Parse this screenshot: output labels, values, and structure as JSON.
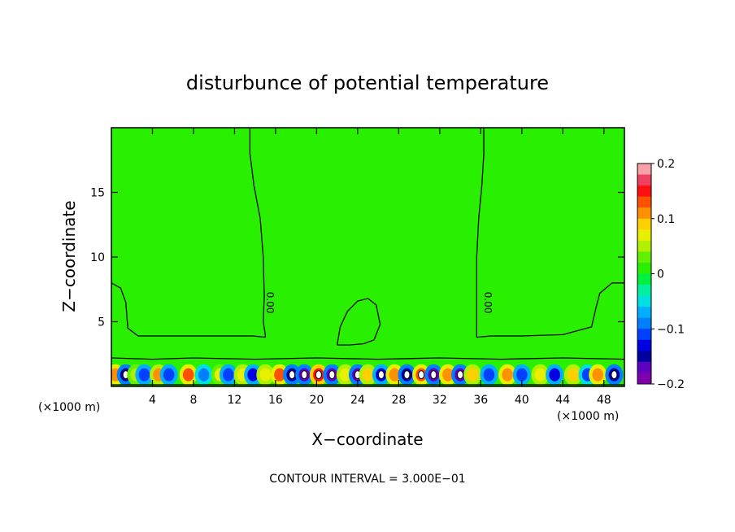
{
  "chart_data": {
    "type": "heatmap",
    "title": "disturbunce of potential temperature",
    "xlabel": "X−coordinate",
    "ylabel": "Z−coordinate",
    "x_unit_left": "(×1000 m)",
    "x_unit_right": "(×1000 m)",
    "footer": "CONTOUR INTERVAL = 3.000E−01",
    "contour_label": "0.00",
    "xlim": [
      0,
      50
    ],
    "ylim": [
      0,
      20
    ],
    "x_ticks": [
      4,
      8,
      12,
      16,
      20,
      24,
      28,
      32,
      36,
      40,
      44,
      48
    ],
    "y_ticks": [
      5,
      10,
      15
    ],
    "colorbar": {
      "range": [
        -0.2,
        0.2
      ],
      "ticks": [
        0.2,
        0.1,
        0,
        -0.1,
        -0.2
      ],
      "tick_labels": [
        "0.2",
        "0.1",
        "0",
        "−0.1",
        "−0.2"
      ],
      "colors": [
        "#f7a0a8",
        "#f04060",
        "#ff1010",
        "#ff5000",
        "#ff9000",
        "#ffd000",
        "#e8f000",
        "#b0f000",
        "#60f000",
        "#28f000",
        "#00f040",
        "#00f0a0",
        "#00e0e0",
        "#00b0ff",
        "#0080ff",
        "#0040ff",
        "#0000e0",
        "#0000a0",
        "#6000c0",
        "#8000b0"
      ]
    },
    "background_value": 0.0,
    "cells": [
      {
        "x": 0.4,
        "value": 0.15
      },
      {
        "x": 1.4,
        "value": -0.18
      },
      {
        "x": 2.4,
        "value": 0.06
      },
      {
        "x": 3.2,
        "value": -0.15
      },
      {
        "x": 4.6,
        "value": 0.13
      },
      {
        "x": 5.6,
        "value": -0.14
      },
      {
        "x": 7.5,
        "value": 0.16
      },
      {
        "x": 9.0,
        "value": -0.12
      },
      {
        "x": 10.6,
        "value": 0.08
      },
      {
        "x": 11.4,
        "value": -0.15
      },
      {
        "x": 12.8,
        "value": 0.1
      },
      {
        "x": 13.8,
        "value": -0.16
      },
      {
        "x": 15.0,
        "value": 0.1
      },
      {
        "x": 16.4,
        "value": 0.16
      },
      {
        "x": 17.6,
        "value": -0.18
      },
      {
        "x": 18.8,
        "value": -0.2
      },
      {
        "x": 20.2,
        "value": 0.18
      },
      {
        "x": 21.5,
        "value": -0.2
      },
      {
        "x": 22.8,
        "value": 0.09
      },
      {
        "x": 24.0,
        "value": -0.2
      },
      {
        "x": 25.0,
        "value": 0.12
      },
      {
        "x": 26.3,
        "value": -0.17
      },
      {
        "x": 27.6,
        "value": 0.14
      },
      {
        "x": 28.8,
        "value": -0.19
      },
      {
        "x": 30.2,
        "value": 0.17
      },
      {
        "x": 31.4,
        "value": -0.2
      },
      {
        "x": 32.8,
        "value": 0.15
      },
      {
        "x": 34.0,
        "value": -0.2
      },
      {
        "x": 35.2,
        "value": 0.12
      },
      {
        "x": 36.8,
        "value": -0.14
      },
      {
        "x": 38.6,
        "value": 0.14
      },
      {
        "x": 40.0,
        "value": -0.15
      },
      {
        "x": 41.8,
        "value": 0.1
      },
      {
        "x": 43.2,
        "value": -0.16
      },
      {
        "x": 45.0,
        "value": 0.12
      },
      {
        "x": 46.4,
        "value": -0.13
      },
      {
        "x": 47.4,
        "value": 0.14
      },
      {
        "x": 49.0,
        "value": -0.18
      }
    ],
    "contours": [
      {
        "x": [
          13.5,
          13.5,
          13.9,
          14.5,
          14.8,
          14.9,
          14.8,
          15.0,
          15.0
        ],
        "y": [
          20,
          18,
          15.5,
          13,
          10,
          7,
          5,
          4,
          3.8
        ]
      },
      {
        "x": [
          36.3,
          36.3,
          36.1,
          35.8,
          35.6,
          35.6,
          35.6,
          35.6
        ],
        "y": [
          20,
          18,
          15.5,
          13,
          10,
          7,
          5,
          3.8
        ]
      },
      {
        "x": [
          0,
          0.9,
          1.4,
          1.6,
          2.6,
          6.0,
          10.0,
          13.8,
          15.0
        ],
        "y": [
          8,
          7.6,
          6.5,
          4.5,
          3.9,
          3.9,
          3.9,
          3.9,
          3.8
        ]
      },
      {
        "x": [
          50,
          48.8,
          47.6,
          47.2,
          46.8,
          44.0,
          40.0,
          37.0,
          35.6
        ],
        "y": [
          8,
          8,
          7.2,
          6,
          4.6,
          4.0,
          3.9,
          3.9,
          3.8
        ]
      },
      {
        "x": [
          22.0,
          22.3,
          23.0,
          24.0,
          25.0,
          25.8,
          26.2,
          25.6,
          24.6,
          23.2,
          22.0
        ],
        "y": [
          3.2,
          4.6,
          5.8,
          6.6,
          6.8,
          6.3,
          4.8,
          3.6,
          3.3,
          3.2,
          3.2
        ]
      },
      {
        "x": [
          0,
          4,
          8,
          14,
          20,
          26,
          32,
          38,
          44,
          50
        ],
        "y": [
          2.2,
          2.1,
          2.2,
          2.1,
          2.2,
          2.1,
          2.2,
          2.1,
          2.2,
          2.1
        ]
      }
    ]
  }
}
